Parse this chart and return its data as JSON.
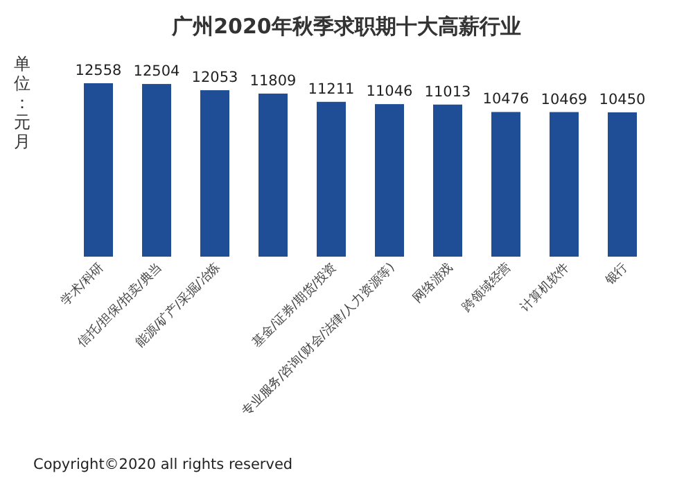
{
  "chart_data": {
    "type": "bar",
    "title": "广州2020年秋季求职期十大高薪行业",
    "ylabel": "单位：元月",
    "categories": [
      "学术/科研",
      "信托/担保/拍卖/典当",
      "能源/矿产/采掘/冶炼",
      null,
      "基金/证券/期货/投资",
      "专业服务/咨询(财会/法律/人力资源等)",
      "网络游戏",
      "跨领域经营",
      "计算机软件",
      "银行"
    ],
    "values": [
      12558,
      12504,
      12053,
      11809,
      11211,
      11046,
      11013,
      10476,
      10469,
      10450
    ],
    "color": "#1f4e96",
    "data_labels": true,
    "annotations": [
      "Copyright©2020 all rights reserved"
    ]
  }
}
